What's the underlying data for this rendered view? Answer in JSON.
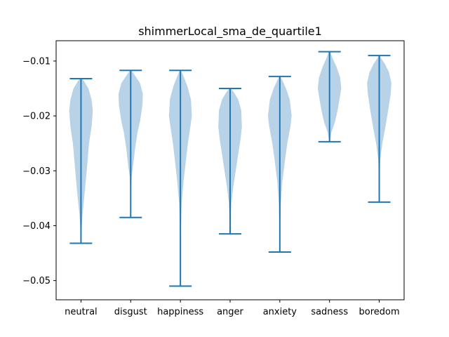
{
  "chart_data": {
    "type": "violin",
    "title": "shimmerLocal_sma_de_quartile1",
    "xlabel": "",
    "ylabel": "",
    "ylim": [
      -0.0535,
      -0.0063
    ],
    "yticks": [
      -0.05,
      -0.04,
      -0.03,
      -0.02,
      -0.01
    ],
    "ytick_labels": [
      "−0.05",
      "−0.04",
      "−0.03",
      "−0.02",
      "−0.01"
    ],
    "grid": false,
    "legend": "none",
    "colors": {
      "body": "#a6c8e2",
      "line": "#1f77b4",
      "axis": "#000000"
    },
    "categories": [
      "neutral",
      "disgust",
      "happiness",
      "anger",
      "anxiety",
      "sadness",
      "boredom"
    ],
    "series": [
      {
        "category": "neutral",
        "min": -0.0432,
        "max": -0.0132,
        "density": [
          [
            -0.0432,
            0.01
          ],
          [
            -0.041,
            0.04
          ],
          [
            -0.038,
            0.12
          ],
          [
            -0.034,
            0.3
          ],
          [
            -0.029,
            0.5
          ],
          [
            -0.025,
            0.65
          ],
          [
            -0.022,
            0.85
          ],
          [
            -0.019,
            0.95
          ],
          [
            -0.017,
            0.85
          ],
          [
            -0.015,
            0.6
          ],
          [
            -0.0135,
            0.2
          ],
          [
            -0.0132,
            0.05
          ]
        ]
      },
      {
        "category": "disgust",
        "min": -0.0385,
        "max": -0.0117,
        "density": [
          [
            -0.0385,
            0.01
          ],
          [
            -0.034,
            0.03
          ],
          [
            -0.031,
            0.08
          ],
          [
            -0.029,
            0.2
          ],
          [
            -0.026,
            0.35
          ],
          [
            -0.023,
            0.55
          ],
          [
            -0.021,
            0.75
          ],
          [
            -0.018,
            0.95
          ],
          [
            -0.016,
            0.98
          ],
          [
            -0.014,
            0.75
          ],
          [
            -0.0125,
            0.3
          ],
          [
            -0.0117,
            0.05
          ]
        ]
      },
      {
        "category": "happiness",
        "min": -0.051,
        "max": -0.0117,
        "density": [
          [
            -0.051,
            0.01
          ],
          [
            -0.045,
            0.02
          ],
          [
            -0.04,
            0.05
          ],
          [
            -0.036,
            0.1
          ],
          [
            -0.032,
            0.25
          ],
          [
            -0.028,
            0.45
          ],
          [
            -0.025,
            0.6
          ],
          [
            -0.022,
            0.8
          ],
          [
            -0.02,
            0.92
          ],
          [
            -0.017,
            0.85
          ],
          [
            -0.0145,
            0.55
          ],
          [
            -0.0125,
            0.2
          ],
          [
            -0.0117,
            0.05
          ]
        ]
      },
      {
        "category": "anger",
        "min": -0.0415,
        "max": -0.015,
        "density": [
          [
            -0.0415,
            0.01
          ],
          [
            -0.039,
            0.04
          ],
          [
            -0.036,
            0.1
          ],
          [
            -0.033,
            0.25
          ],
          [
            -0.03,
            0.45
          ],
          [
            -0.027,
            0.65
          ],
          [
            -0.024,
            0.85
          ],
          [
            -0.022,
            0.95
          ],
          [
            -0.019,
            0.9
          ],
          [
            -0.017,
            0.65
          ],
          [
            -0.0155,
            0.25
          ],
          [
            -0.015,
            0.05
          ]
        ]
      },
      {
        "category": "anxiety",
        "min": -0.0448,
        "max": -0.0128,
        "density": [
          [
            -0.0448,
            0.01
          ],
          [
            -0.04,
            0.03
          ],
          [
            -0.036,
            0.08
          ],
          [
            -0.032,
            0.2
          ],
          [
            -0.028,
            0.42
          ],
          [
            -0.025,
            0.6
          ],
          [
            -0.022,
            0.85
          ],
          [
            -0.02,
            0.95
          ],
          [
            -0.017,
            0.8
          ],
          [
            -0.015,
            0.5
          ],
          [
            -0.0135,
            0.2
          ],
          [
            -0.0128,
            0.05
          ]
        ]
      },
      {
        "category": "sadness",
        "min": -0.0247,
        "max": -0.0083,
        "density": [
          [
            -0.0247,
            0.02
          ],
          [
            -0.023,
            0.15
          ],
          [
            -0.021,
            0.45
          ],
          [
            -0.019,
            0.65
          ],
          [
            -0.017,
            0.8
          ],
          [
            -0.015,
            0.95
          ],
          [
            -0.013,
            0.85
          ],
          [
            -0.011,
            0.55
          ],
          [
            -0.0095,
            0.25
          ],
          [
            -0.0083,
            0.05
          ]
        ]
      },
      {
        "category": "boredom",
        "min": -0.0357,
        "max": -0.009,
        "density": [
          [
            -0.0357,
            0.01
          ],
          [
            -0.031,
            0.03
          ],
          [
            -0.028,
            0.08
          ],
          [
            -0.025,
            0.25
          ],
          [
            -0.022,
            0.5
          ],
          [
            -0.019,
            0.72
          ],
          [
            -0.016,
            0.92
          ],
          [
            -0.014,
            0.98
          ],
          [
            -0.012,
            0.78
          ],
          [
            -0.0105,
            0.45
          ],
          [
            -0.0095,
            0.15
          ],
          [
            -0.009,
            0.05
          ]
        ]
      }
    ]
  }
}
